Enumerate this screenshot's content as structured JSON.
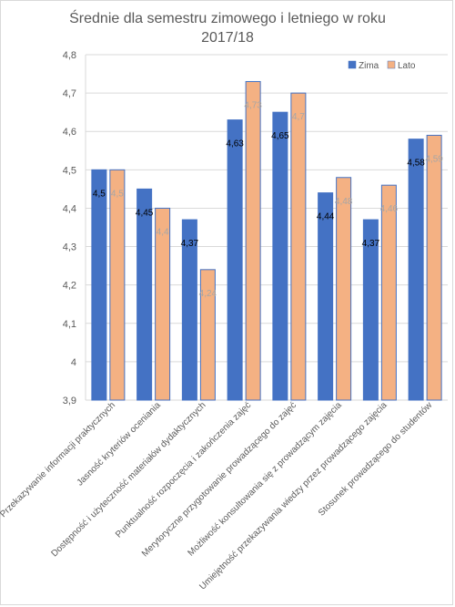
{
  "chart_data": {
    "type": "bar",
    "title": "Średnie  dla semestru  zimowego  i letniego  w roku 2017/18",
    "title_lines": [
      "Średnie  dla semestru  zimowego  i letniego  w roku",
      "2017/18"
    ],
    "categories": [
      "Przekazywanie informacji praktycznych",
      "Jasność kryteriów oceniania",
      "Dostępność i użyteczność materiałów dydaktycznych",
      "Punktualność rozpoczęcia i zakończenia zajęć",
      "Merytoryczne przygotowanie prowadzącego do zajęć",
      "Możliwość konsultowania się z prowadzącym zajęcia",
      "Umiejętność przekazywania wiedzy przez prowadzącego zajęcia",
      "Stosunek prowadzącego do studentów"
    ],
    "series": [
      {
        "name": "Zima",
        "values": [
          4.5,
          4.45,
          4.37,
          4.63,
          4.65,
          4.44,
          4.37,
          4.58
        ],
        "labels": [
          "4,5",
          "4,45",
          "4,37",
          "4,63",
          "4,65",
          "4,44",
          "4,37",
          "4,58"
        ],
        "color": "#4472c4",
        "label_color": "#000000"
      },
      {
        "name": "Lato",
        "values": [
          4.5,
          4.4,
          4.24,
          4.73,
          4.7,
          4.48,
          4.46,
          4.59
        ],
        "labels": [
          "4,5",
          "4,4",
          "4,24",
          "4,73",
          "4,7",
          "4,48",
          "4,46",
          "4,59"
        ],
        "color": "#f4b183",
        "label_color": "#a6a6a6"
      }
    ],
    "ylim": [
      3.9,
      4.8
    ],
    "yticks": [
      3.9,
      4.0,
      4.1,
      4.2,
      4.3,
      4.4,
      4.5,
      4.6,
      4.7,
      4.8
    ],
    "ytick_labels": [
      "3,9",
      "4",
      "4,1",
      "4,2",
      "4,3",
      "4,4",
      "4,5",
      "4,6",
      "4,7",
      "4,8"
    ],
    "grid": true,
    "legend_position": "top-right",
    "xlabel": "",
    "ylabel": ""
  },
  "colors": {
    "axis_text": "#595959",
    "gridline": "#d9d9d9",
    "bar_outline": "#4472c4"
  }
}
